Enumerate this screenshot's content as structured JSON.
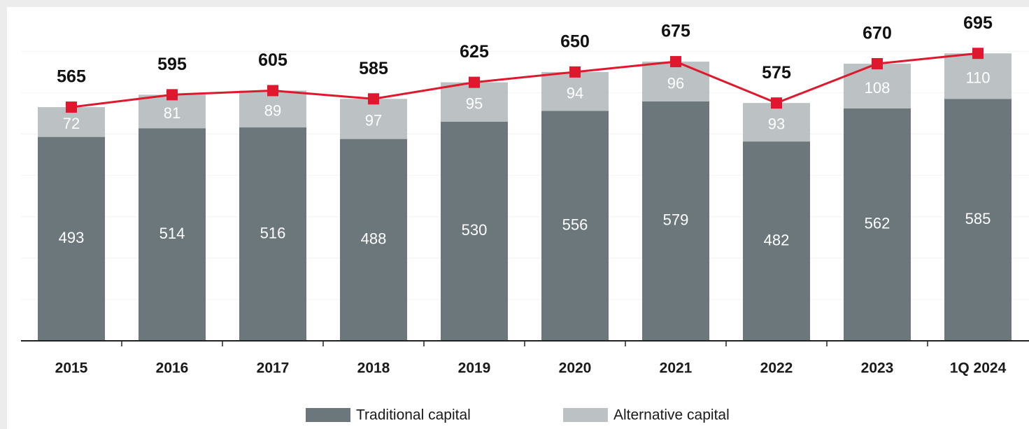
{
  "chart_data": {
    "type": "stacked-bar-line",
    "categories": [
      "2015",
      "2016",
      "2017",
      "2018",
      "2019",
      "2020",
      "2021",
      "2022",
      "2023",
      "1Q 2024"
    ],
    "series": [
      {
        "name": "Traditional capital",
        "color": "#6b777b",
        "values": [
          493,
          514,
          516,
          488,
          530,
          556,
          579,
          482,
          562,
          585
        ]
      },
      {
        "name": "Alternative capital",
        "color": "#bcc1c3",
        "values": [
          72,
          81,
          89,
          97,
          95,
          94,
          96,
          93,
          108,
          110
        ]
      }
    ],
    "totals": {
      "color": "#e0182d",
      "values": [
        565,
        595,
        605,
        585,
        625,
        650,
        675,
        575,
        670,
        695
      ]
    },
    "ylim": [
      0,
      800
    ],
    "yticks": [
      0,
      100,
      200,
      300,
      400,
      500,
      600,
      700
    ],
    "grid": true
  }
}
